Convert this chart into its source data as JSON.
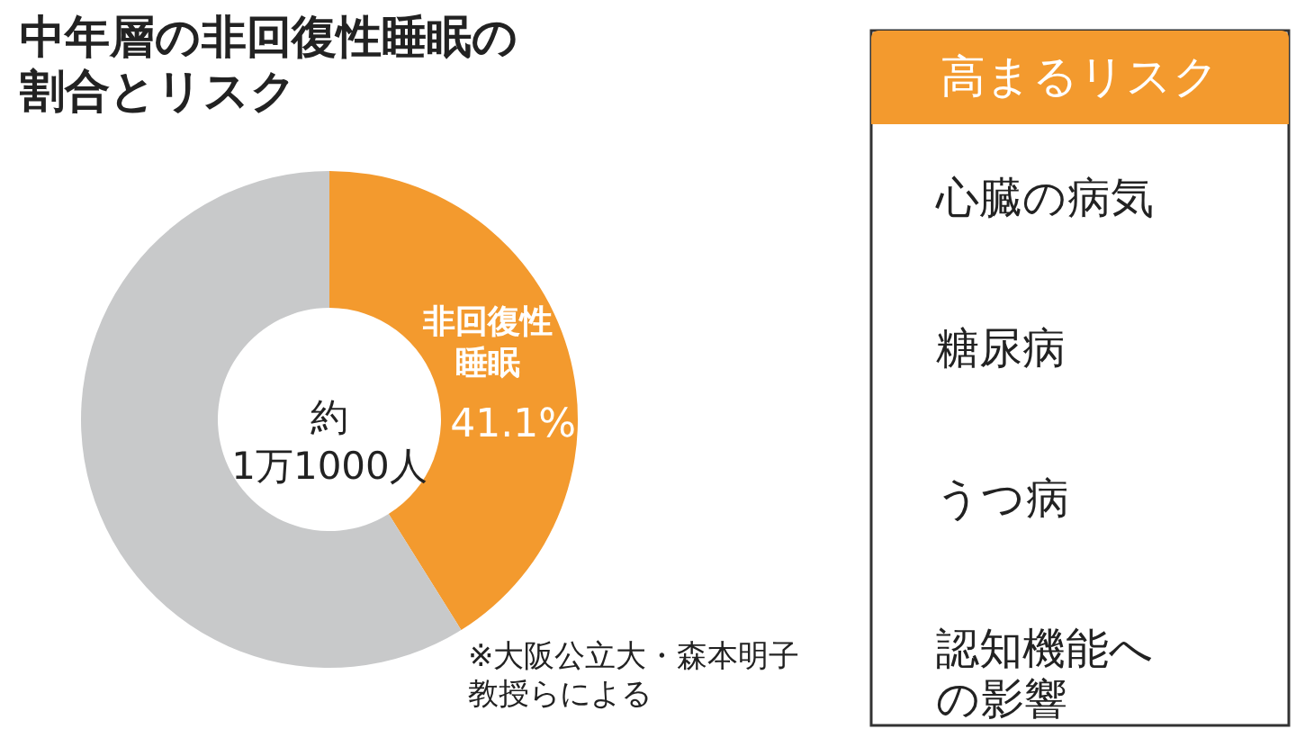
{
  "chart_data": [
    {
      "type": "donut",
      "title": "中年層の非回復性睡眠の割合とリスク",
      "categories": [
        "非回復性睡眠",
        null
      ],
      "values": [
        41.1,
        58.9
      ],
      "colors": [
        "#f39a2e",
        "#c8c9ca"
      ],
      "value_labels": [
        "41.1%",
        null
      ],
      "annotations": [
        "約 1万1000人",
        "※大阪公立大・森本明子教授らによる"
      ]
    },
    {
      "type": "other",
      "title": "高まるリスク",
      "annotations": [
        "心臓の病気",
        "糖尿病",
        "うつ病",
        "認知機能への影響"
      ]
    }
  ]
}
